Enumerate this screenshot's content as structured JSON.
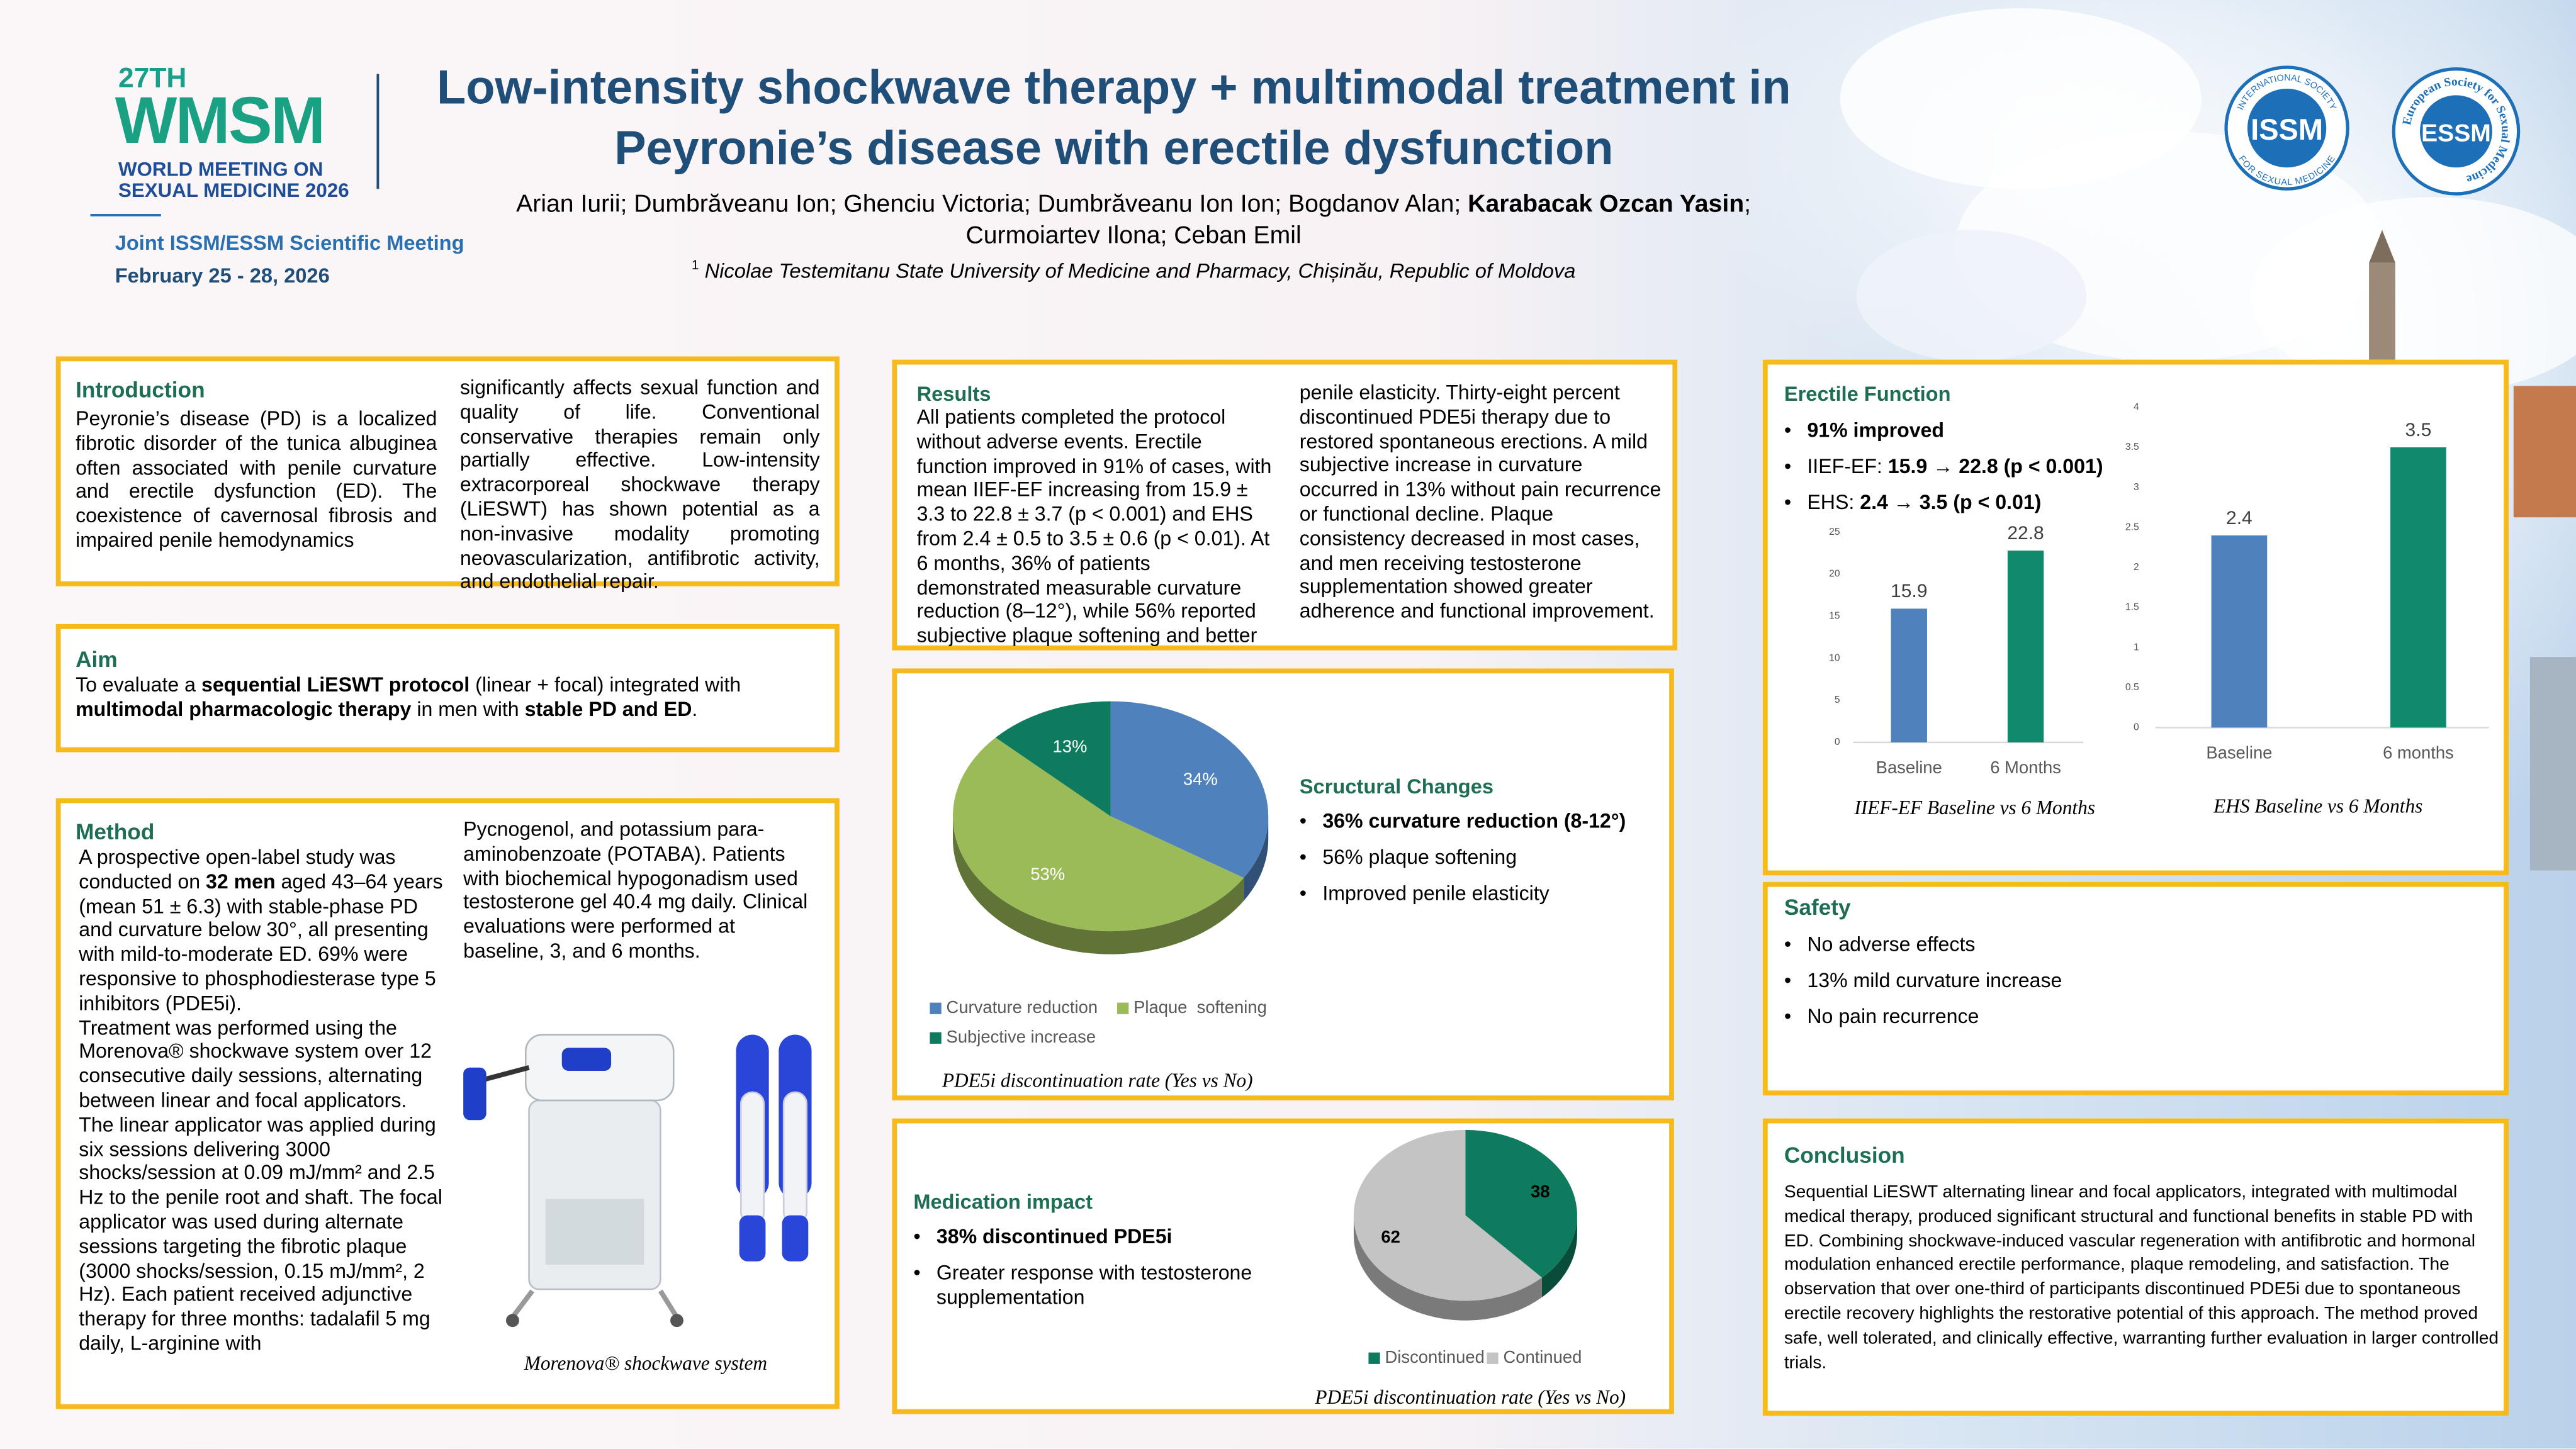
{
  "header": {
    "logo": {
      "edition": "27TH",
      "name": "WMSM",
      "line1": "WORLD MEETING ON",
      "line2": "SEXUAL MEDICINE 2026",
      "meeting": "Joint ISSM/ESSM Scientific Meeting",
      "dates": "February 25 - 28, 2026"
    },
    "title_lines": [
      "Low-intensity shockwave therapy + multimodal treatment in",
      "Peyronie’s disease with erectile dysfunction"
    ],
    "authors": [
      [
        {
          "text": "Arian Iurii; Dumbrăveanu Ion; Ghenciu Victoria; Dumbrăveanu Ion Ion; Bogdanov Alan; "
        },
        {
          "text": "Karabacak Ozcan Yasin",
          "bold": true
        },
        {
          "text": ";"
        }
      ],
      "Curmoiartev Ilona; Ceban Emil"
    ],
    "affiliation": {
      "mark": "1",
      "text": "Nicolae Testemitanu State University of Medicine and Pharmacy, Chișinău, Republic of Moldova"
    },
    "logos": {
      "issm": {
        "name": "ISSM",
        "ring_top": "INTERNATIONAL SOCIETY",
        "ring_bottom": "FOR SEXUAL MEDICINE"
      },
      "essm": {
        "name": "ESSM",
        "ring": "European Society for Sexual Medicine"
      }
    }
  },
  "sections": {
    "introduction": {
      "title": "Introduction",
      "columns": [
        [
          "Peyronie’s disease (PD) is a localized fibrotic disorder of the tunica albuginea often associated with penile curvature and erectile dysfunction (ED). The coexistence of cavernosal fibrosis and impaired penile hemodynamics"
        ],
        [
          "significantly affects sexual function and quality of life. Conventional conservative therapies remain only partially effective. Low-intensity extracorporeal shockwave therapy (LiESWT) has shown potential as a non-invasive modality promoting neovascularization, antifibrotic activity, and endothelial repair."
        ]
      ]
    },
    "aim": {
      "title": "Aim",
      "columns": [
        [
          [
            {
              "text": "To evaluate a "
            },
            {
              "text": "sequential LiESWT protocol",
              "bold": true
            },
            {
              "text": " (linear + focal) integrated with "
            },
            {
              "text": "multimodal pharmacologic therapy",
              "bold": true
            },
            {
              "text": " in men with "
            },
            {
              "text": "stable PD and ED",
              "bold": true
            },
            {
              "text": "."
            }
          ]
        ]
      ]
    },
    "method": {
      "title": "Method",
      "columns": [
        [
          [
            {
              "text": "A prospective open-label study was conducted on "
            },
            {
              "text": "32 men",
              "bold": true
            },
            {
              "text": " aged 43–64 years (mean 51 ± 6.3) with stable-phase PD and curvature below 30°, all presenting with mild-to-moderate ED. 69% were responsive to phosphodiesterase type 5 inhibitors (PDE5i)."
            }
          ],
          "Treatment was performed using the Morenova® shockwave system over 12 consecutive daily sessions, alternating between linear and focal applicators. The linear applicator was applied during six sessions delivering 3000 shocks/session at 0.09 mJ/mm² and 2.5 Hz to the penile root and shaft. The focal applicator was used during alternate sessions targeting the fibrotic plaque (3000 shocks/session, 0.15 mJ/mm², 2 Hz). Each patient received adjunctive therapy for three months: tadalafil 5 mg daily, L-arginine with"
        ],
        [
          "Pycnogenol, and potassium para-aminobenzoate (POTABA). Patients with biochemical hypogonadism used testosterone gel 40.4 mg daily. Clinical evaluations were performed at baseline, 3, and 6 months."
        ]
      ],
      "image_caption": "Morenova® shockwave system"
    },
    "results": {
      "title": "Results",
      "columns": [
        [
          "All patients completed the protocol without adverse events. Erectile function improved in 91% of cases, with mean IIEF-EF increasing from 15.9 ± 3.3 to 22.8 ± 3.7 (p < 0.001) and EHS from 2.4 ± 0.5 to 3.5 ± 0.6 (p < 0.01). At 6 months, 36% of patients demonstrated measurable curvature reduction (8–12°), while 56% reported subjective plaque softening and better"
        ],
        [
          "penile elasticity. Thirty-eight percent discontinued PDE5i therapy due to restored spontaneous erections. A mild subjective increase in curvature occurred in 13% without pain recurrence or functional decline. Plaque consistency decreased in most cases, and men receiving testosterone supplementation showed greater adherence and functional improvement."
        ]
      ]
    },
    "structural": {
      "title": "Scructural Changes",
      "bullets": [
        [
          {
            "text": "36% curvature reduction (8-12°)",
            "bold": true
          }
        ],
        "56% plaque softening",
        "Improved penile elasticity"
      ]
    },
    "medication": {
      "title": "Medication impact",
      "bullets": [
        [
          {
            "text": "38% discontinued PDE5i",
            "bold": true
          }
        ],
        "Greater response with testosterone supplementation"
      ]
    },
    "erectile": {
      "title": "Erectile Function",
      "bullets": [
        [
          {
            "text": "91% improved",
            "bold": true
          }
        ],
        [
          {
            "text": "IIEF-EF: "
          },
          {
            "text": "15.9 → 22.8 (p < 0.001)",
            "bold": true
          }
        ],
        [
          {
            "text": "EHS: "
          },
          {
            "text": "2.4 → 3.5 (p < 0.01)",
            "bold": true
          }
        ]
      ]
    },
    "safety": {
      "title": "Safety",
      "bullets": [
        "No adverse effects",
        "13% mild curvature increase",
        "No pain recurrence"
      ]
    },
    "conclusion": {
      "title": "Conclusion",
      "columns": [
        [
          "Sequential LiESWT alternating linear and focal applicators, integrated with multimodal medical therapy, produced significant structural and functional benefits in stable PD with ED. Combining shockwave-induced vascular regeneration with antifibrotic and hormonal modulation enhanced erectile performance, plaque remodeling, and satisfaction. The observation that over one-third of participants discontinued PDE5i due to spontaneous erectile recovery highlights the restorative potential of this approach. The method proved safe, well tolerated, and clinically effective, warranting further evaluation in larger controlled trials."
        ]
      ]
    }
  },
  "chart_data": [
    {
      "type": "bar",
      "caption": "IIEF-EF Baseline vs 6 Months",
      "categories": [
        "Baseline",
        "6 Months"
      ],
      "values": [
        15.9,
        22.8
      ],
      "colors": [
        "#4f81bd",
        "#0f8a6c"
      ],
      "ylim": [
        0,
        25
      ],
      "yticks": [
        0,
        5,
        10,
        15,
        20,
        25
      ]
    },
    {
      "type": "bar",
      "caption": "EHS Baseline vs 6 Months",
      "categories": [
        "Baseline",
        "6 months"
      ],
      "values": [
        2.4,
        3.5
      ],
      "colors": [
        "#4f81bd",
        "#0f8a6c"
      ],
      "ylim": [
        0,
        4
      ],
      "yticks": [
        0,
        0.5,
        1,
        1.5,
        2,
        2.5,
        3,
        3.5,
        4
      ]
    },
    {
      "type": "pie",
      "caption": "PDE5i discontinuation rate (Yes vs No)",
      "categories": [
        "Curvature reduction",
        "Plaque  softening",
        "Subjective increase"
      ],
      "values": [
        34,
        53,
        13
      ],
      "value_labels": [
        "34%",
        "53%",
        "13%"
      ],
      "colors": [
        "#4f81bd",
        "#9bbb59",
        "#0e7a5e"
      ]
    },
    {
      "type": "pie",
      "caption": "PDE5i discontinuation rate (Yes vs No)",
      "categories": [
        "Discontinued",
        "Continued"
      ],
      "values": [
        38,
        62
      ],
      "colors": [
        "#0e7a5e",
        "#c4c4c4"
      ]
    }
  ]
}
